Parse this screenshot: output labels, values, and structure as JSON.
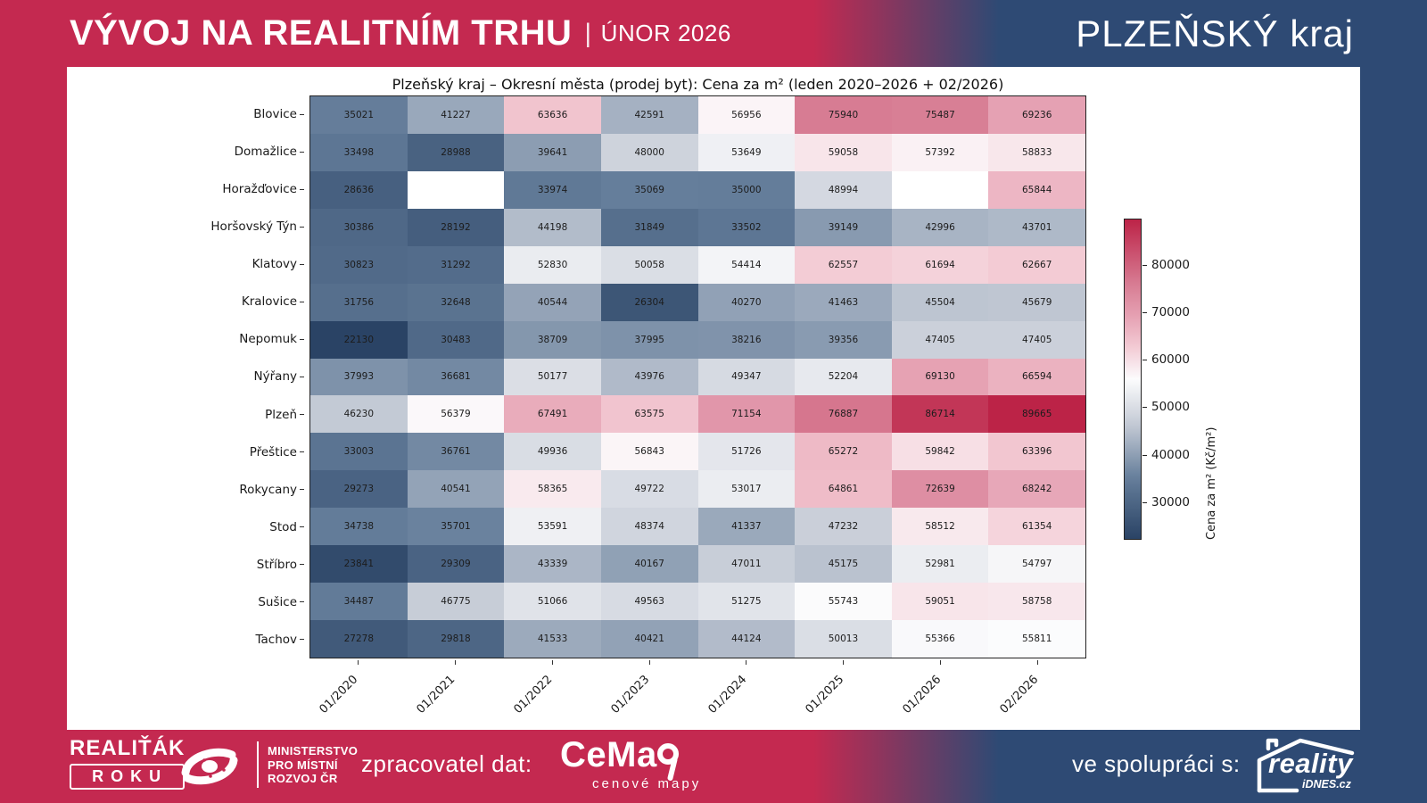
{
  "header": {
    "title": "VÝVOJ NA REALITNÍM TRHU",
    "divider": "|",
    "subtitle": "ÚNOR 2026",
    "region": "PLZEŇSKÝ kraj"
  },
  "chart_data": {
    "type": "heatmap",
    "title": "Plzeňský kraj – Okresní města (prodej byt): Cena za m² (leden 2020–2026 + 02/2026)",
    "columns": [
      "01/2020",
      "01/2021",
      "01/2022",
      "01/2023",
      "01/2024",
      "01/2025",
      "01/2026",
      "02/2026"
    ],
    "rows": [
      "Blovice",
      "Domažlice",
      "Horažďovice",
      "Horšovský Týn",
      "Klatovy",
      "Kralovice",
      "Nepomuk",
      "Nýřany",
      "Plzeň",
      "Přeštice",
      "Rokycany",
      "Stod",
      "Stříbro",
      "Sušice",
      "Tachov"
    ],
    "values": [
      [
        35021,
        41227,
        63636,
        42591,
        56956,
        75940,
        75487,
        69236
      ],
      [
        33498,
        28988,
        39641,
        48000,
        53649,
        59058,
        57392,
        58833
      ],
      [
        28636,
        null,
        33974,
        35069,
        35000,
        48994,
        null,
        65844
      ],
      [
        30386,
        28192,
        44198,
        31849,
        33502,
        39149,
        42996,
        43701
      ],
      [
        30823,
        31292,
        52830,
        50058,
        54414,
        62557,
        61694,
        62667
      ],
      [
        31756,
        32648,
        40544,
        26304,
        40270,
        41463,
        45504,
        45679
      ],
      [
        22130,
        30483,
        38709,
        37995,
        38216,
        39356,
        47405,
        47405
      ],
      [
        37993,
        36681,
        50177,
        43976,
        49347,
        52204,
        69130,
        66594
      ],
      [
        46230,
        56379,
        67491,
        63575,
        71154,
        76887,
        86714,
        89665
      ],
      [
        33003,
        36761,
        49936,
        56843,
        51726,
        65272,
        59842,
        63396
      ],
      [
        29273,
        40541,
        58365,
        49722,
        53017,
        64861,
        72639,
        68242
      ],
      [
        34738,
        35701,
        53591,
        48374,
        41337,
        47232,
        58512,
        61354
      ],
      [
        23841,
        29309,
        43339,
        40167,
        47011,
        45175,
        52981,
        54797
      ],
      [
        34487,
        46775,
        51066,
        49563,
        51275,
        55743,
        59051,
        58758
      ],
      [
        27278,
        29818,
        41533,
        40421,
        44124,
        50013,
        55366,
        55811
      ]
    ],
    "colorbar": {
      "label": "Cena za m² (Kč/m²)",
      "ticks": [
        30000,
        40000,
        50000,
        60000,
        70000,
        80000
      ],
      "vmin": 22130,
      "vmax": 89665
    },
    "colormap_stops": [
      {
        "t": 0.0,
        "color": "#2a4365"
      },
      {
        "t": 0.19,
        "color": "#647d9a"
      },
      {
        "t": 0.27,
        "color": "#92a2b6"
      },
      {
        "t": 0.36,
        "color": "#c5cbd6"
      },
      {
        "t": 0.5,
        "color": "#fcfcfd"
      },
      {
        "t": 0.61,
        "color": "#f2c6d0"
      },
      {
        "t": 0.7,
        "color": "#e5a0b2"
      },
      {
        "t": 0.8,
        "color": "#d77b92"
      },
      {
        "t": 1.0,
        "color": "#bc2347"
      }
    ],
    "missing_color": "#ffffff",
    "legend_position": "right",
    "grid": false
  },
  "theme": {
    "crimson": "#c42950",
    "navy": "#2e4a74",
    "card": "#ffffff"
  },
  "footer": {
    "realitak_top": "REALIŤÁK",
    "realitak_bottom": "ROKU",
    "ministry_l1": "MINISTERSTVO",
    "ministry_l2": "PRO MÍSTNÍ",
    "ministry_l3": "ROZVOJ ČR",
    "zpracovatel": "zpracovatel dat:",
    "cemap": "CeMa",
    "cemap_sub": "cenové mapy",
    "spoluprace": "ve spolupráci s:",
    "reality": "reality",
    "reality_sub": "iDNES.cz"
  }
}
